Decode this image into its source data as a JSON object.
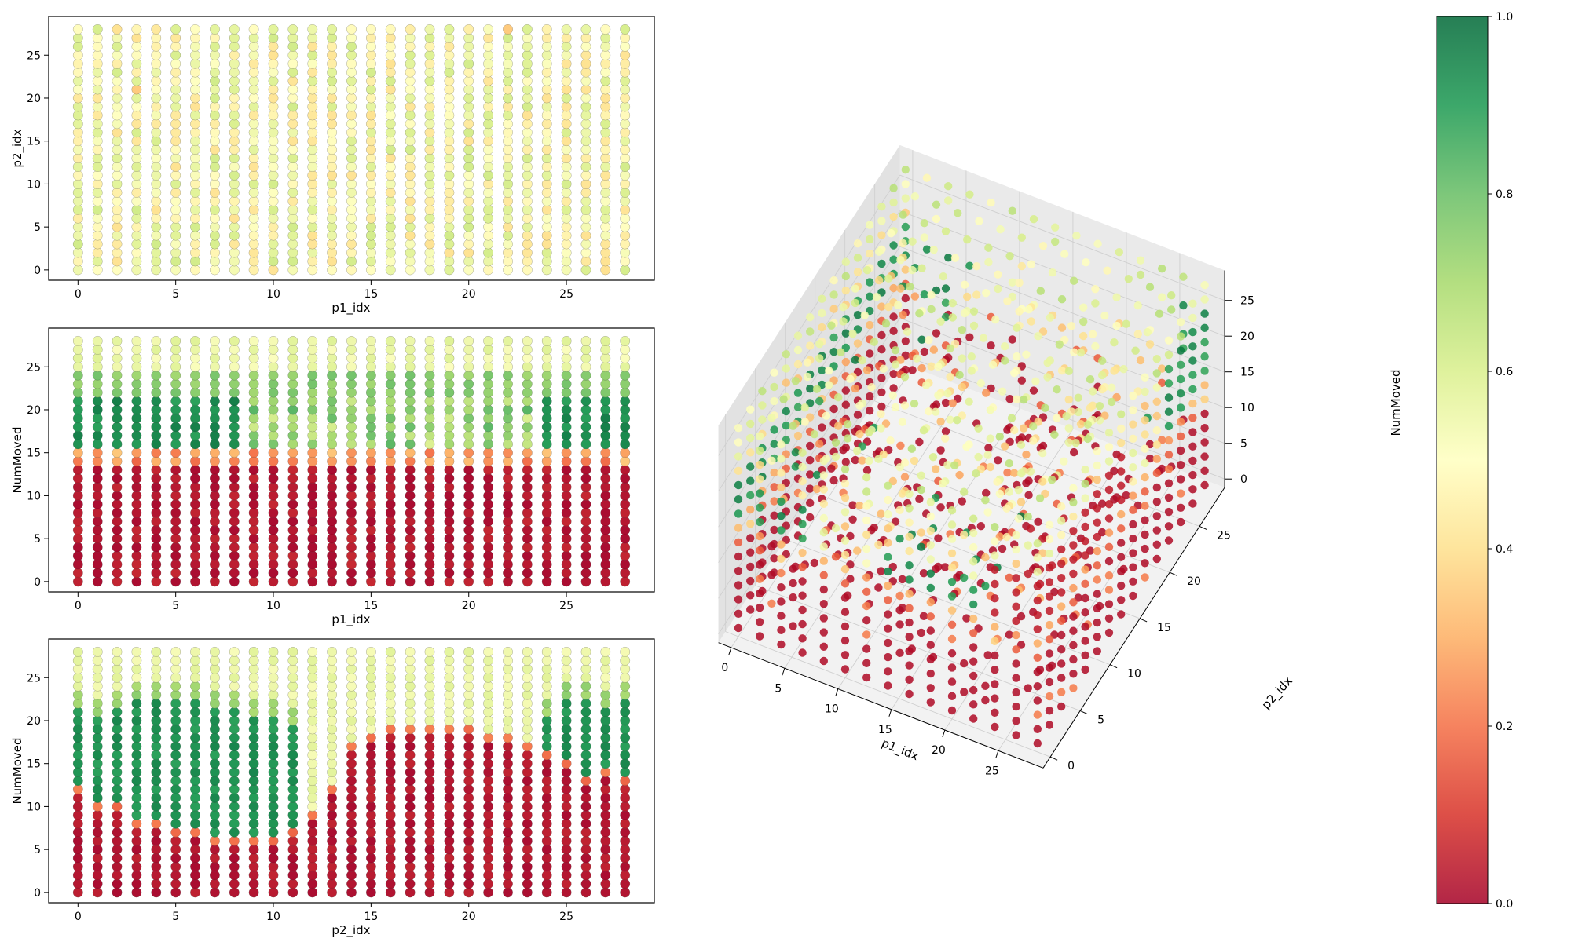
{
  "colors": {
    "colormap": "RdYlGn",
    "stops": [
      "#a50026",
      "#d73027",
      "#f46d43",
      "#fdae61",
      "#fee08b",
      "#ffffbf",
      "#d9ef8b",
      "#a6d96a",
      "#66bd63",
      "#1a9850",
      "#006837"
    ]
  },
  "chart_data": [
    {
      "type": "scatter",
      "title": "",
      "xlabel": "p1_idx",
      "ylabel": "p2_idx",
      "xlim": [
        -1.5,
        29.5
      ],
      "ylim": [
        -1.2,
        29.5
      ],
      "xticks": [
        "0",
        "5",
        "10",
        "15",
        "20",
        "25"
      ],
      "yticks": [
        "0",
        "5",
        "10",
        "15",
        "20",
        "25"
      ],
      "x_values": [
        0,
        28
      ],
      "y_values": [
        0,
        28
      ],
      "color_value_range": [
        0.42,
        0.7
      ],
      "description_of_color": "mostly light yellow-green, values roughly 0.45-0.65"
    },
    {
      "type": "scatter",
      "title": "",
      "xlabel": "p1_idx",
      "ylabel": "NumMoved",
      "xlim": [
        -1.5,
        29.5
      ],
      "ylim": [
        -1.2,
        29.5
      ],
      "xticks": [
        "0",
        "5",
        "10",
        "15",
        "20",
        "25"
      ],
      "yticks": [
        "0",
        "5",
        "10",
        "15",
        "20",
        "25"
      ],
      "x_values": [
        0,
        28
      ],
      "y_values": [
        0,
        28
      ],
      "bands": [
        {
          "y_from": 0,
          "y_to": 13,
          "value": 0.02
        },
        {
          "y_from": 14,
          "y_to": 15,
          "value": 0.25
        },
        {
          "y_from": 16,
          "y_to": 21,
          "value": 0.93
        },
        {
          "y_from": 22,
          "y_to": 24,
          "value": 0.75
        },
        {
          "y_from": 25,
          "y_to": 28,
          "value": 0.55
        }
      ]
    },
    {
      "type": "scatter",
      "title": "",
      "xlabel": "p2_idx",
      "ylabel": "NumMoved",
      "xlim": [
        -1.5,
        29.5
      ],
      "ylim": [
        -1.2,
        29.5
      ],
      "xticks": [
        "0",
        "5",
        "10",
        "15",
        "20",
        "25"
      ],
      "yticks": [
        "0",
        "5",
        "10",
        "15",
        "20",
        "25"
      ],
      "x_values": [
        0,
        28
      ],
      "y_values": [
        0,
        28
      ],
      "red_boundary_by_x": [
        12,
        10,
        10,
        8,
        8,
        7,
        7,
        6,
        6,
        6,
        6,
        7,
        9,
        12,
        17,
        18,
        19,
        19,
        19,
        19,
        19,
        18,
        18,
        17,
        16,
        15,
        13,
        14,
        13
      ],
      "green_top_by_x": [
        21,
        20,
        21,
        22,
        22,
        22,
        22,
        21,
        21,
        20,
        20,
        19,
        0,
        0,
        0,
        0,
        0,
        0,
        0,
        0,
        0,
        0,
        0,
        0,
        20,
        22,
        22,
        21,
        22
      ]
    },
    {
      "type": "scatter",
      "title": "",
      "xlabel": "p1_idx",
      "ylabel": "p2_idx",
      "zlabel": "NumMoved",
      "xlim": [
        0,
        28
      ],
      "ylim": [
        0,
        28
      ],
      "zlim": [
        0,
        28
      ],
      "xticks": [
        "0",
        "5",
        "10",
        "15",
        "20",
        "25"
      ],
      "yticks": [
        "0",
        "5",
        "10",
        "15",
        "20",
        "25"
      ],
      "zticks": [
        "0",
        "5",
        "10",
        "15",
        "20",
        "25"
      ]
    }
  ],
  "colorbar": {
    "range": [
      0.0,
      1.0
    ],
    "ticks": [
      "0.0",
      "0.2",
      "0.4",
      "0.6",
      "0.8",
      "1.0"
    ]
  }
}
